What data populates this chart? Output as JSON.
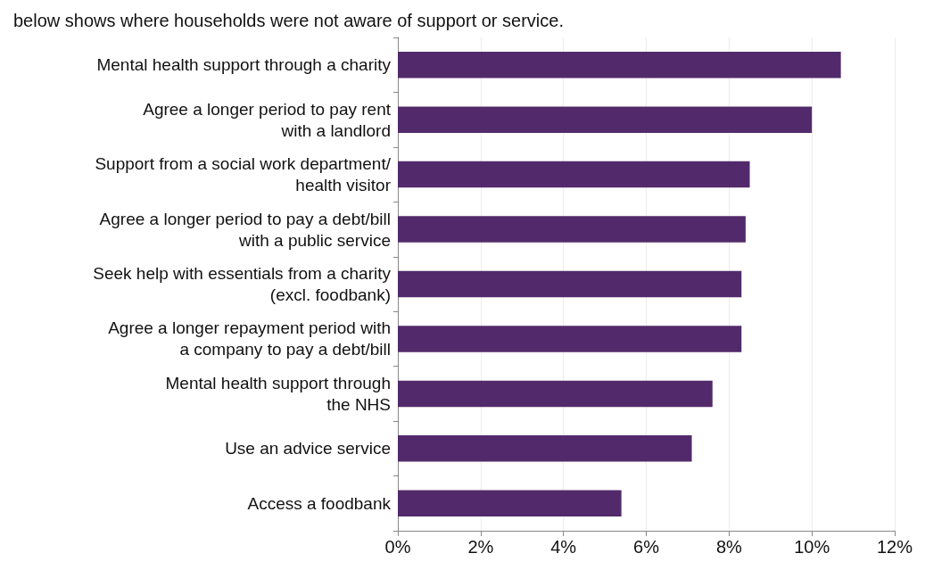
{
  "chart_data": {
    "type": "bar",
    "orientation": "horizontal",
    "title": "below shows where households were not aware of support or service.",
    "categories": [
      "Mental health support through a charity",
      "Agree a longer period to pay rent\nwith a landlord",
      "Support from a social work department/\nhealth visitor",
      "Agree a longer period to pay a debt/bill\nwith a public service",
      "Seek help with essentials from a charity\n(excl. foodbank)",
      "Agree a longer repayment period with\na company to pay a debt/bill",
      "Mental health support through\nthe NHS",
      "Use an advice service",
      "Access a foodbank"
    ],
    "values": [
      10.7,
      10.0,
      8.5,
      8.4,
      8.3,
      8.3,
      7.6,
      7.1,
      5.4
    ],
    "color": "#522a6b",
    "xlim": [
      0,
      12
    ],
    "xticks": [
      {
        "value": 0,
        "label": "0%"
      },
      {
        "value": 2,
        "label": "2%"
      },
      {
        "value": 4,
        "label": "4%"
      },
      {
        "value": 6,
        "label": "6%"
      },
      {
        "value": 8,
        "label": "8%"
      },
      {
        "value": 10,
        "label": "10%"
      },
      {
        "value": 12,
        "label": "12%"
      }
    ],
    "grid": "x"
  }
}
